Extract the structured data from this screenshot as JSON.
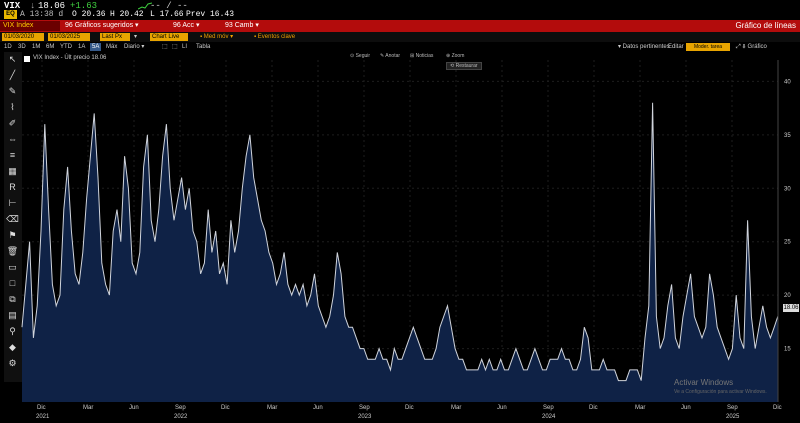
{
  "ticker": {
    "symbol": "VIX",
    "separator": "↓",
    "last": "18.06",
    "change": "+1.63",
    "dashes": "-- / --",
    "badge": "EQ",
    "time": "A 13:38 d",
    "open": "O 20.36",
    "high": "H 20.42",
    "low": "L 17.66",
    "prev": "Prev 16.43"
  },
  "command_bar": {
    "security": "VIX Index",
    "suggested": "96 Gráficos sugeridos ▾",
    "actions": "96 Acc ▾",
    "change": "93 Camb ▾",
    "title": "Gráfico de líneas"
  },
  "params": {
    "start_date": "01/03/2020",
    "end_date": "01/03/2025",
    "field": "Last Px",
    "mode": "Chart Live",
    "mode_label": "▾",
    "average": "▪ Med móv ▾",
    "events": "▪ Eventos clave"
  },
  "ranges": {
    "items": [
      "1D",
      "3D",
      "1M",
      "6M",
      "YTD",
      "1A",
      "5A",
      "Máx",
      "Diario ▾",
      "⬚",
      "⬚",
      "LI",
      "Tabla"
    ],
    "selected_index": 6,
    "pertinent": "▾ Datos pertinentes",
    "edit": "Editar",
    "orange_btn": "Moder. tarea",
    "chart_type": "⤢ ⇩ Gráfico"
  },
  "toolbar_icons": [
    "pointer-icon",
    "line-icon",
    "pen-icon",
    "brush-icon",
    "pencil-icon",
    "measure-icon",
    "lines-icon",
    "grid-icon",
    "text-icon",
    "ruler-icon",
    "eraser-icon",
    "marker-icon",
    "trash-icon",
    "box-icon",
    "square-icon",
    "layers-icon",
    "bars-icon",
    "bell-icon",
    "color-icon",
    "gear-icon"
  ],
  "chart_toolbar": {
    "seguir": "⊙ Seguir",
    "anotar": "✎ Anotar",
    "noticias": "⊞ Noticias",
    "zoom": "⊕ Zoom",
    "restaurar": "⟲ Restaurar"
  },
  "chart_data": {
    "type": "area",
    "series": [
      {
        "name": "VIX Index - Últ precio 18.06",
        "values": [
          17,
          21,
          25,
          16,
          19,
          26,
          36,
          28,
          21,
          19,
          20,
          28,
          32,
          26,
          22,
          21,
          24,
          29,
          33,
          37,
          31,
          23,
          21,
          20,
          26,
          28,
          25,
          33,
          30,
          23,
          22,
          24,
          32,
          35,
          27,
          25,
          28,
          33,
          36,
          30,
          27,
          29,
          31,
          28,
          30,
          26,
          25,
          22,
          23,
          28,
          24,
          26,
          22,
          23,
          21,
          27,
          24,
          26,
          30,
          33,
          35,
          31,
          29,
          27,
          26,
          24,
          23,
          21,
          22,
          24,
          21,
          20,
          21,
          20,
          21,
          19,
          20,
          22,
          19,
          18,
          17,
          18,
          20,
          24,
          22,
          18,
          17,
          17,
          16,
          15,
          15,
          14,
          14,
          14,
          15,
          14,
          14,
          13,
          15,
          14,
          14,
          15,
          16,
          17,
          16,
          15,
          14,
          14,
          14,
          15,
          17,
          18,
          19,
          17,
          15,
          14,
          14,
          13,
          13,
          13,
          13,
          14,
          13,
          14,
          13,
          13,
          14,
          13,
          13,
          14,
          15,
          14,
          13,
          13,
          14,
          15,
          14,
          13,
          13,
          14,
          14,
          14,
          15,
          14,
          14,
          13,
          13,
          14,
          17,
          16,
          13,
          13,
          13,
          14,
          13,
          13,
          13,
          12,
          12,
          12,
          13,
          13,
          13,
          12,
          16,
          19,
          38,
          18,
          15,
          16,
          19,
          21,
          16,
          15,
          18,
          20,
          22,
          18,
          17,
          16,
          17,
          22,
          20,
          17,
          16,
          15,
          14,
          15,
          20,
          16,
          15,
          27,
          18,
          15,
          17,
          19,
          17,
          16,
          17,
          18.06
        ]
      }
    ],
    "ylim": [
      10,
      42
    ],
    "yticks": [
      15,
      20,
      25,
      30,
      35,
      40
    ],
    "months": [
      "Dic",
      "Mar",
      "Jun",
      "Sep",
      "Dic",
      "Mar",
      "Jun",
      "Sep",
      "Dic",
      "Mar",
      "Jun",
      "Sep",
      "Dic",
      "Mar",
      "Jun",
      "Sep",
      "Dic"
    ],
    "years": [
      "2021",
      "2022",
      "2023",
      "2024",
      "2025"
    ],
    "last_value": "18.06",
    "fill_color": "#0f2246",
    "line_color": "#d0d4dc",
    "grid": true
  },
  "watermark": {
    "title": "Activar Windows",
    "subtitle": "Ve a Configuración para activar Windows."
  }
}
